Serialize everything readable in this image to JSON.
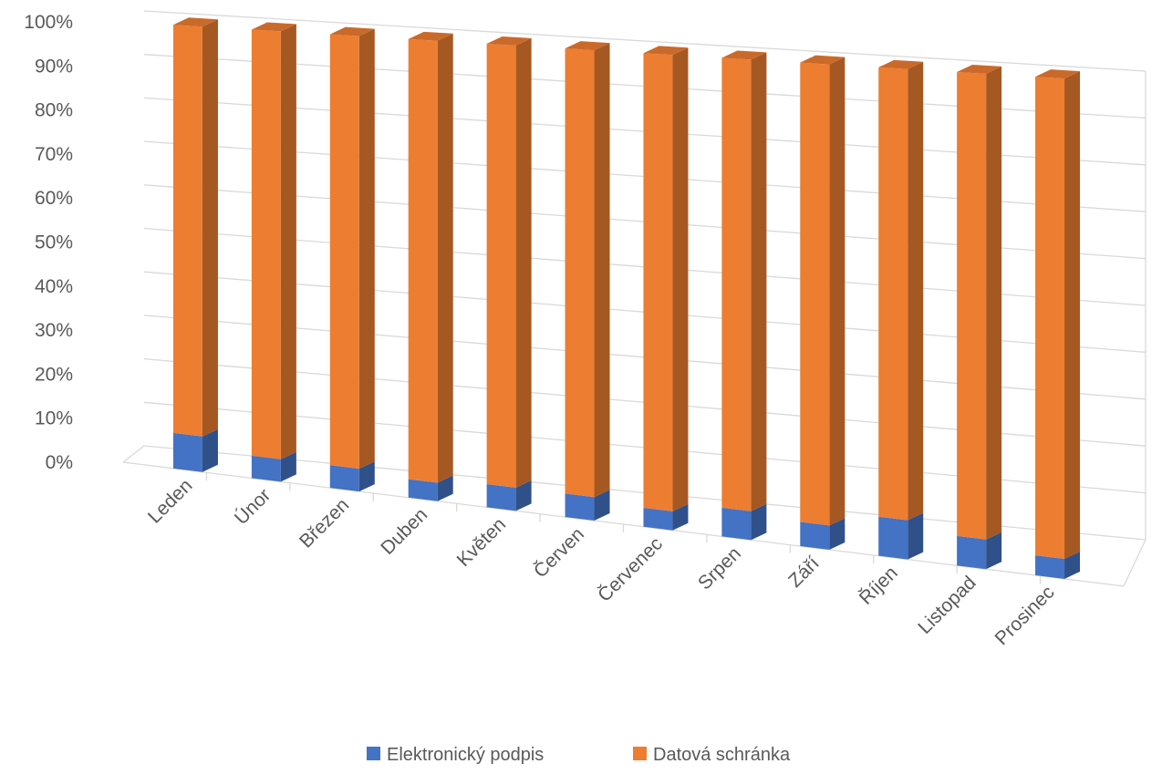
{
  "chart_data": {
    "type": "bar",
    "stacked": "percent",
    "view": "3d",
    "categories": [
      "Leden",
      "Únor",
      "Březen",
      "Duben",
      "Květen",
      "Červen",
      "Červenec",
      "Srpen",
      "Září",
      "Říjen",
      "Listopad",
      "Prosinec"
    ],
    "series": [
      {
        "name": "Elektronický podpis",
        "color": "#4472C4",
        "values": [
          8,
          5,
          5,
          4,
          5,
          5,
          4,
          6,
          5,
          8,
          6,
          4
        ]
      },
      {
        "name": "Datová schránka",
        "color": "#ED7D31",
        "values": [
          92,
          95,
          95,
          96,
          95,
          95,
          96,
          94,
          95,
          92,
          94,
          96
        ]
      }
    ],
    "yticks": [
      "0%",
      "10%",
      "20%",
      "30%",
      "40%",
      "50%",
      "60%",
      "70%",
      "80%",
      "90%",
      "100%"
    ],
    "ylim": [
      0,
      100
    ],
    "y_unit": "%",
    "grid": true,
    "legend_position": "bottom"
  }
}
